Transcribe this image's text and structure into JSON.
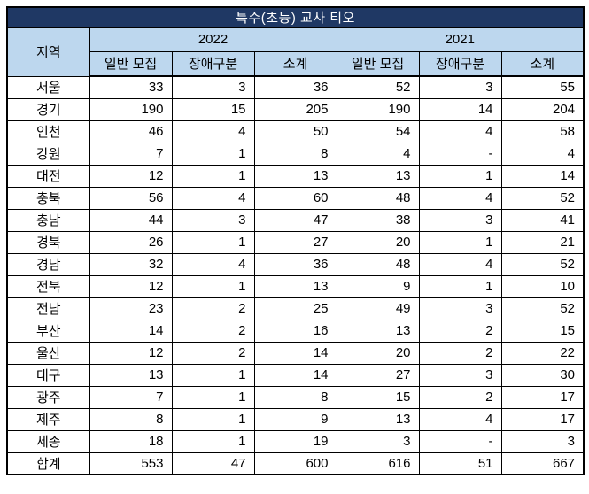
{
  "title": "특수(초등) 교사 티오",
  "table": {
    "region_header": "지역",
    "year_groups": [
      {
        "year": "2022",
        "columns": [
          "일반 모집",
          "장애구분",
          "소계"
        ]
      },
      {
        "year": "2021",
        "columns": [
          "일반 모집",
          "장애구분",
          "소계"
        ]
      }
    ],
    "rows": [
      {
        "region": "서울",
        "values": [
          "33",
          "3",
          "36",
          "52",
          "3",
          "55"
        ]
      },
      {
        "region": "경기",
        "values": [
          "190",
          "15",
          "205",
          "190",
          "14",
          "204"
        ]
      },
      {
        "region": "인천",
        "values": [
          "46",
          "4",
          "50",
          "54",
          "4",
          "58"
        ]
      },
      {
        "region": "강원",
        "values": [
          "7",
          "1",
          "8",
          "4",
          "-",
          "4"
        ]
      },
      {
        "region": "대전",
        "values": [
          "12",
          "1",
          "13",
          "13",
          "1",
          "14"
        ]
      },
      {
        "region": "충북",
        "values": [
          "56",
          "4",
          "60",
          "48",
          "4",
          "52"
        ]
      },
      {
        "region": "충남",
        "values": [
          "44",
          "3",
          "47",
          "38",
          "3",
          "41"
        ]
      },
      {
        "region": "경북",
        "values": [
          "26",
          "1",
          "27",
          "20",
          "1",
          "21"
        ]
      },
      {
        "region": "경남",
        "values": [
          "32",
          "4",
          "36",
          "48",
          "4",
          "52"
        ]
      },
      {
        "region": "전북",
        "values": [
          "12",
          "1",
          "13",
          "9",
          "1",
          "10"
        ]
      },
      {
        "region": "전남",
        "values": [
          "23",
          "2",
          "25",
          "49",
          "3",
          "52"
        ]
      },
      {
        "region": "부산",
        "values": [
          "14",
          "2",
          "16",
          "13",
          "2",
          "15"
        ]
      },
      {
        "region": "울산",
        "values": [
          "12",
          "2",
          "14",
          "20",
          "2",
          "22"
        ]
      },
      {
        "region": "대구",
        "values": [
          "13",
          "1",
          "14",
          "27",
          "3",
          "30"
        ]
      },
      {
        "region": "광주",
        "values": [
          "7",
          "1",
          "8",
          "15",
          "2",
          "17"
        ]
      },
      {
        "region": "제주",
        "values": [
          "8",
          "1",
          "9",
          "13",
          "4",
          "17"
        ]
      },
      {
        "region": "세종",
        "values": [
          "18",
          "1",
          "19",
          "3",
          "-",
          "3"
        ]
      },
      {
        "region": "합계",
        "values": [
          "553",
          "47",
          "600",
          "616",
          "51",
          "667"
        ]
      }
    ],
    "total_row_label": "합계"
  },
  "colors": {
    "title_bg": "#1f3864",
    "title_text": "#ffffff",
    "header_bg": "#bdd7ee",
    "border": "#000000",
    "body_text": "#000000"
  }
}
